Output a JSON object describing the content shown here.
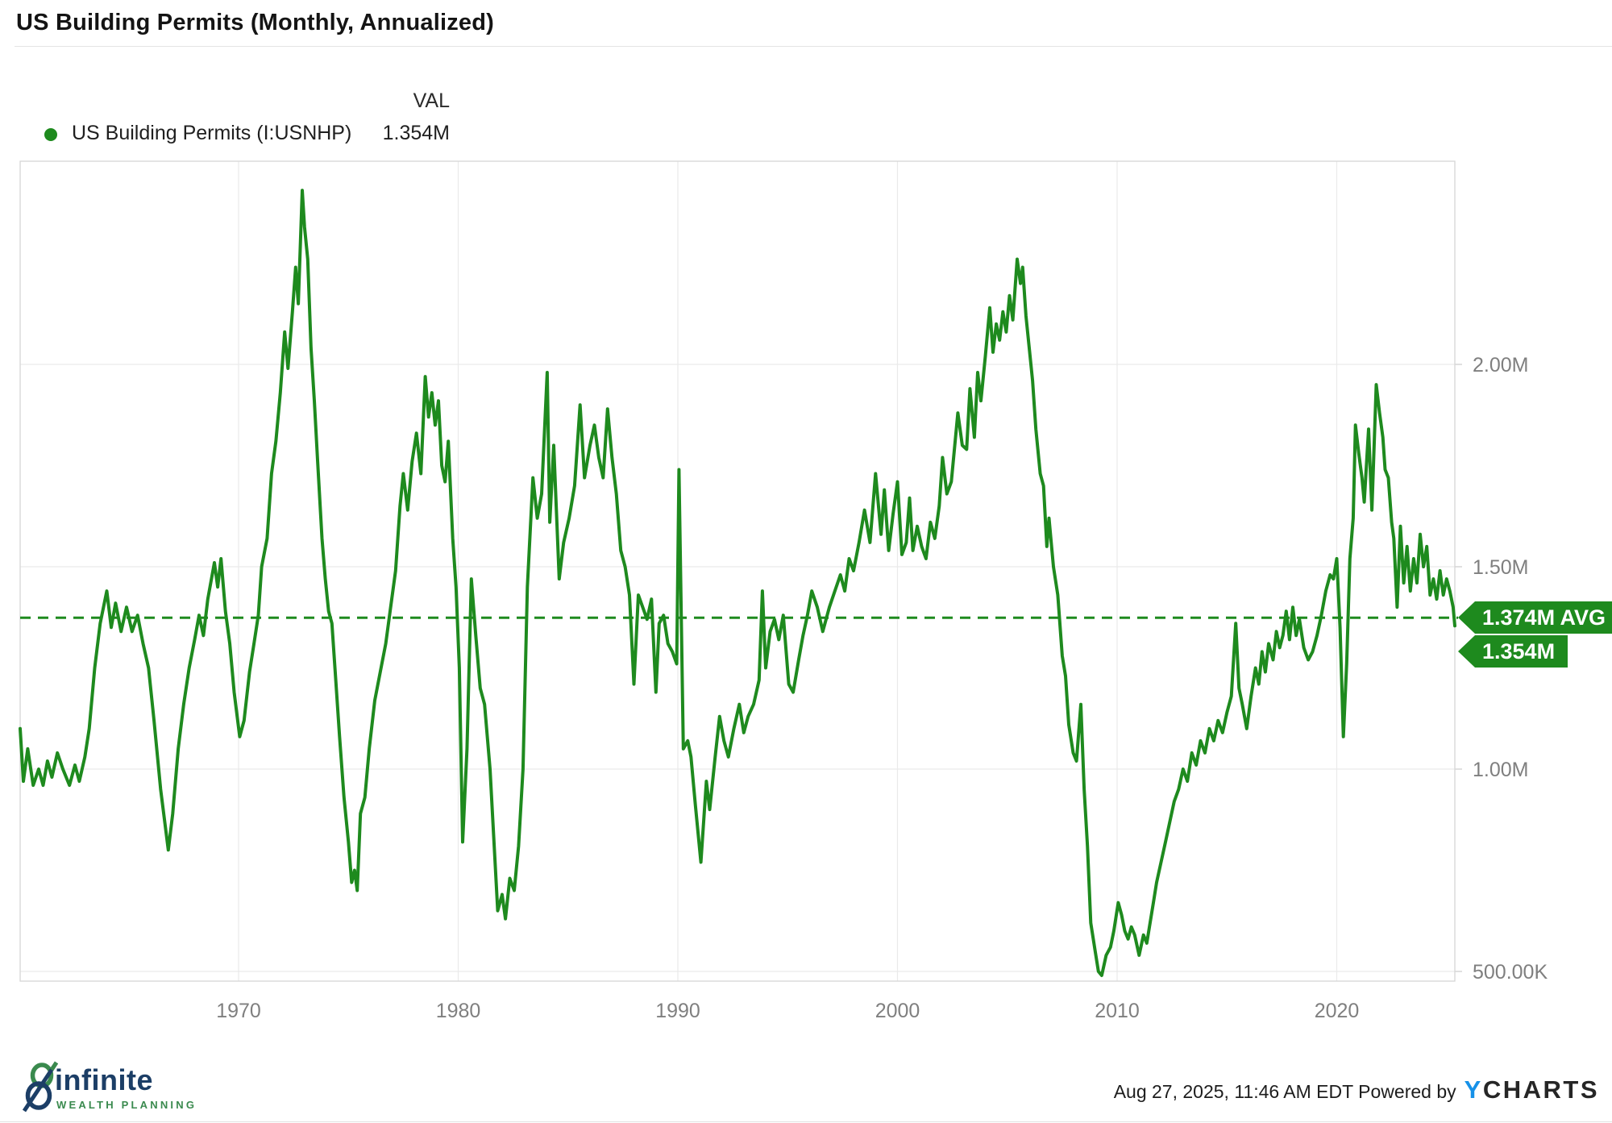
{
  "header": {
    "title": "US Building Permits (Monthly, Annualized)"
  },
  "legend": {
    "series_label": "US Building Permits (I:USNHP)",
    "val_header": "VAL",
    "val_value": "1.354M",
    "dot_color": "#1e8a1e"
  },
  "chart_data": {
    "type": "line",
    "title": "US Building Permits (Monthly, Annualized)",
    "series_name": "US Building Permits (I:USNHP)",
    "line_color": "#1e8a1e",
    "grid": true,
    "legend_position": "top-left",
    "y_axis_side": "right",
    "x_range": [
      1960,
      2025.5
    ],
    "y_range_m": [
      0.45,
      2.5
    ],
    "y_ticks": [
      {
        "value_m": 2.0,
        "label": "2.00M"
      },
      {
        "value_m": 1.5,
        "label": "1.50M"
      },
      {
        "value_m": 1.0,
        "label": "1.00M"
      },
      {
        "value_m": 0.5,
        "label": "500.00K"
      }
    ],
    "x_ticks": [
      {
        "year": 1970,
        "label": "1970"
      },
      {
        "year": 1980,
        "label": "1980"
      },
      {
        "year": 1990,
        "label": "1990"
      },
      {
        "year": 2000,
        "label": "2000"
      },
      {
        "year": 2010,
        "label": "2010"
      },
      {
        "year": 2020,
        "label": "2020"
      }
    ],
    "average": {
      "value_m": 1.374,
      "label": "1.374M AVG"
    },
    "last": {
      "value_m": 1.354,
      "label": "1.354M"
    },
    "points": [
      [
        1960.0,
        1.1
      ],
      [
        1960.2,
        0.97
      ],
      [
        1960.4,
        1.05
      ],
      [
        1960.65,
        0.96
      ],
      [
        1960.9,
        1.0
      ],
      [
        1961.1,
        0.96
      ],
      [
        1961.3,
        1.02
      ],
      [
        1961.5,
        0.98
      ],
      [
        1961.75,
        1.04
      ],
      [
        1962.0,
        1.0
      ],
      [
        1962.3,
        0.96
      ],
      [
        1962.55,
        1.01
      ],
      [
        1962.75,
        0.97
      ],
      [
        1963.0,
        1.03
      ],
      [
        1963.2,
        1.1
      ],
      [
        1963.45,
        1.25
      ],
      [
        1963.7,
        1.36
      ],
      [
        1964.0,
        1.44
      ],
      [
        1964.2,
        1.35
      ],
      [
        1964.4,
        1.41
      ],
      [
        1964.65,
        1.34
      ],
      [
        1964.9,
        1.4
      ],
      [
        1965.15,
        1.34
      ],
      [
        1965.4,
        1.38
      ],
      [
        1965.65,
        1.31
      ],
      [
        1965.9,
        1.25
      ],
      [
        1966.15,
        1.12
      ],
      [
        1966.45,
        0.95
      ],
      [
        1966.8,
        0.8
      ],
      [
        1967.0,
        0.89
      ],
      [
        1967.25,
        1.05
      ],
      [
        1967.5,
        1.16
      ],
      [
        1967.75,
        1.25
      ],
      [
        1968.0,
        1.32
      ],
      [
        1968.2,
        1.38
      ],
      [
        1968.4,
        1.33
      ],
      [
        1968.6,
        1.42
      ],
      [
        1968.9,
        1.51
      ],
      [
        1969.05,
        1.45
      ],
      [
        1969.2,
        1.52
      ],
      [
        1969.4,
        1.39
      ],
      [
        1969.6,
        1.31
      ],
      [
        1969.8,
        1.19
      ],
      [
        1970.05,
        1.08
      ],
      [
        1970.25,
        1.12
      ],
      [
        1970.5,
        1.24
      ],
      [
        1970.7,
        1.31
      ],
      [
        1970.9,
        1.38
      ],
      [
        1971.05,
        1.5
      ],
      [
        1971.3,
        1.57
      ],
      [
        1971.5,
        1.73
      ],
      [
        1971.7,
        1.81
      ],
      [
        1971.9,
        1.93
      ],
      [
        1972.1,
        2.08
      ],
      [
        1972.25,
        1.99
      ],
      [
        1972.45,
        2.13
      ],
      [
        1972.6,
        2.24
      ],
      [
        1972.72,
        2.15
      ],
      [
        1972.9,
        2.43
      ],
      [
        1973.0,
        2.34
      ],
      [
        1973.15,
        2.26
      ],
      [
        1973.3,
        2.04
      ],
      [
        1973.45,
        1.91
      ],
      [
        1973.6,
        1.76
      ],
      [
        1973.8,
        1.57
      ],
      [
        1973.95,
        1.47
      ],
      [
        1974.1,
        1.39
      ],
      [
        1974.25,
        1.36
      ],
      [
        1974.4,
        1.24
      ],
      [
        1974.6,
        1.08
      ],
      [
        1974.8,
        0.93
      ],
      [
        1975.0,
        0.82
      ],
      [
        1975.15,
        0.72
      ],
      [
        1975.28,
        0.75
      ],
      [
        1975.4,
        0.7
      ],
      [
        1975.55,
        0.89
      ],
      [
        1975.75,
        0.93
      ],
      [
        1975.95,
        1.05
      ],
      [
        1976.2,
        1.17
      ],
      [
        1976.45,
        1.24
      ],
      [
        1976.7,
        1.31
      ],
      [
        1976.9,
        1.39
      ],
      [
        1977.15,
        1.49
      ],
      [
        1977.35,
        1.65
      ],
      [
        1977.5,
        1.73
      ],
      [
        1977.7,
        1.64
      ],
      [
        1977.9,
        1.76
      ],
      [
        1978.1,
        1.83
      ],
      [
        1978.3,
        1.73
      ],
      [
        1978.5,
        1.97
      ],
      [
        1978.65,
        1.87
      ],
      [
        1978.8,
        1.93
      ],
      [
        1978.95,
        1.85
      ],
      [
        1979.1,
        1.91
      ],
      [
        1979.25,
        1.75
      ],
      [
        1979.4,
        1.71
      ],
      [
        1979.55,
        1.81
      ],
      [
        1979.75,
        1.57
      ],
      [
        1979.9,
        1.45
      ],
      [
        1980.05,
        1.25
      ],
      [
        1980.2,
        0.82
      ],
      [
        1980.4,
        1.05
      ],
      [
        1980.6,
        1.47
      ],
      [
        1980.8,
        1.33
      ],
      [
        1981.0,
        1.2
      ],
      [
        1981.2,
        1.16
      ],
      [
        1981.45,
        1.0
      ],
      [
        1981.8,
        0.65
      ],
      [
        1982.0,
        0.69
      ],
      [
        1982.15,
        0.63
      ],
      [
        1982.35,
        0.73
      ],
      [
        1982.55,
        0.7
      ],
      [
        1982.75,
        0.81
      ],
      [
        1982.95,
        1.0
      ],
      [
        1983.15,
        1.45
      ],
      [
        1983.4,
        1.72
      ],
      [
        1983.6,
        1.62
      ],
      [
        1983.8,
        1.68
      ],
      [
        1984.05,
        1.98
      ],
      [
        1984.17,
        1.61
      ],
      [
        1984.35,
        1.8
      ],
      [
        1984.6,
        1.47
      ],
      [
        1984.8,
        1.56
      ],
      [
        1985.05,
        1.62
      ],
      [
        1985.3,
        1.7
      ],
      [
        1985.55,
        1.9
      ],
      [
        1985.75,
        1.72
      ],
      [
        1986.0,
        1.8
      ],
      [
        1986.2,
        1.85
      ],
      [
        1986.4,
        1.77
      ],
      [
        1986.6,
        1.72
      ],
      [
        1986.8,
        1.89
      ],
      [
        1987.0,
        1.77
      ],
      [
        1987.2,
        1.68
      ],
      [
        1987.4,
        1.54
      ],
      [
        1987.6,
        1.5
      ],
      [
        1987.8,
        1.43
      ],
      [
        1988.0,
        1.21
      ],
      [
        1988.2,
        1.43
      ],
      [
        1988.4,
        1.4
      ],
      [
        1988.6,
        1.37
      ],
      [
        1988.8,
        1.42
      ],
      [
        1989.0,
        1.19
      ],
      [
        1989.15,
        1.36
      ],
      [
        1989.35,
        1.38
      ],
      [
        1989.55,
        1.31
      ],
      [
        1989.75,
        1.29
      ],
      [
        1989.95,
        1.26
      ],
      [
        1990.05,
        1.74
      ],
      [
        1990.25,
        1.05
      ],
      [
        1990.45,
        1.07
      ],
      [
        1990.6,
        1.03
      ],
      [
        1990.8,
        0.91
      ],
      [
        1991.05,
        0.77
      ],
      [
        1991.3,
        0.97
      ],
      [
        1991.45,
        0.9
      ],
      [
        1991.7,
        1.03
      ],
      [
        1991.9,
        1.13
      ],
      [
        1992.1,
        1.07
      ],
      [
        1992.3,
        1.03
      ],
      [
        1992.55,
        1.1
      ],
      [
        1992.8,
        1.16
      ],
      [
        1993.0,
        1.09
      ],
      [
        1993.2,
        1.13
      ],
      [
        1993.45,
        1.16
      ],
      [
        1993.7,
        1.22
      ],
      [
        1993.85,
        1.44
      ],
      [
        1994.0,
        1.25
      ],
      [
        1994.2,
        1.34
      ],
      [
        1994.4,
        1.37
      ],
      [
        1994.6,
        1.32
      ],
      [
        1994.8,
        1.38
      ],
      [
        1995.05,
        1.21
      ],
      [
        1995.25,
        1.19
      ],
      [
        1995.5,
        1.27
      ],
      [
        1995.7,
        1.33
      ],
      [
        1995.9,
        1.38
      ],
      [
        1996.1,
        1.44
      ],
      [
        1996.35,
        1.4
      ],
      [
        1996.6,
        1.34
      ],
      [
        1996.9,
        1.4
      ],
      [
        1997.15,
        1.44
      ],
      [
        1997.4,
        1.48
      ],
      [
        1997.6,
        1.44
      ],
      [
        1997.8,
        1.52
      ],
      [
        1998.0,
        1.49
      ],
      [
        1998.25,
        1.56
      ],
      [
        1998.5,
        1.64
      ],
      [
        1998.75,
        1.56
      ],
      [
        1999.0,
        1.73
      ],
      [
        1999.25,
        1.58
      ],
      [
        1999.4,
        1.69
      ],
      [
        1999.6,
        1.54
      ],
      [
        1999.8,
        1.63
      ],
      [
        2000.0,
        1.71
      ],
      [
        2000.2,
        1.53
      ],
      [
        2000.4,
        1.56
      ],
      [
        2000.55,
        1.67
      ],
      [
        2000.7,
        1.54
      ],
      [
        2000.9,
        1.6
      ],
      [
        2001.1,
        1.55
      ],
      [
        2001.3,
        1.52
      ],
      [
        2001.5,
        1.61
      ],
      [
        2001.7,
        1.57
      ],
      [
        2001.9,
        1.65
      ],
      [
        2002.05,
        1.77
      ],
      [
        2002.25,
        1.68
      ],
      [
        2002.45,
        1.71
      ],
      [
        2002.75,
        1.88
      ],
      [
        2002.95,
        1.8
      ],
      [
        2003.15,
        1.79
      ],
      [
        2003.3,
        1.94
      ],
      [
        2003.5,
        1.82
      ],
      [
        2003.65,
        1.98
      ],
      [
        2003.8,
        1.91
      ],
      [
        2004.0,
        2.02
      ],
      [
        2004.2,
        2.14
      ],
      [
        2004.35,
        2.03
      ],
      [
        2004.5,
        2.1
      ],
      [
        2004.65,
        2.06
      ],
      [
        2004.8,
        2.13
      ],
      [
        2004.95,
        2.08
      ],
      [
        2005.1,
        2.17
      ],
      [
        2005.25,
        2.11
      ],
      [
        2005.45,
        2.26
      ],
      [
        2005.6,
        2.2
      ],
      [
        2005.7,
        2.24
      ],
      [
        2005.85,
        2.12
      ],
      [
        2006.0,
        2.04
      ],
      [
        2006.15,
        1.96
      ],
      [
        2006.3,
        1.84
      ],
      [
        2006.5,
        1.73
      ],
      [
        2006.65,
        1.7
      ],
      [
        2006.8,
        1.55
      ],
      [
        2006.9,
        1.62
      ],
      [
        2007.1,
        1.5
      ],
      [
        2007.3,
        1.43
      ],
      [
        2007.5,
        1.28
      ],
      [
        2007.65,
        1.23
      ],
      [
        2007.8,
        1.11
      ],
      [
        2008.0,
        1.04
      ],
      [
        2008.15,
        1.02
      ],
      [
        2008.35,
        1.16
      ],
      [
        2008.5,
        0.95
      ],
      [
        2008.65,
        0.81
      ],
      [
        2008.8,
        0.62
      ],
      [
        2009.0,
        0.55
      ],
      [
        2009.15,
        0.5
      ],
      [
        2009.3,
        0.49
      ],
      [
        2009.5,
        0.54
      ],
      [
        2009.7,
        0.56
      ],
      [
        2009.85,
        0.6
      ],
      [
        2010.05,
        0.67
      ],
      [
        2010.2,
        0.64
      ],
      [
        2010.35,
        0.6
      ],
      [
        2010.5,
        0.58
      ],
      [
        2010.65,
        0.61
      ],
      [
        2010.8,
        0.59
      ],
      [
        2011.0,
        0.54
      ],
      [
        2011.2,
        0.59
      ],
      [
        2011.35,
        0.57
      ],
      [
        2011.5,
        0.62
      ],
      [
        2011.65,
        0.67
      ],
      [
        2011.8,
        0.72
      ],
      [
        2012.0,
        0.77
      ],
      [
        2012.2,
        0.82
      ],
      [
        2012.4,
        0.87
      ],
      [
        2012.6,
        0.92
      ],
      [
        2012.8,
        0.95
      ],
      [
        2013.0,
        1.0
      ],
      [
        2013.2,
        0.97
      ],
      [
        2013.4,
        1.04
      ],
      [
        2013.6,
        1.01
      ],
      [
        2013.8,
        1.07
      ],
      [
        2014.0,
        1.04
      ],
      [
        2014.2,
        1.1
      ],
      [
        2014.4,
        1.07
      ],
      [
        2014.6,
        1.12
      ],
      [
        2014.8,
        1.09
      ],
      [
        2015.0,
        1.14
      ],
      [
        2015.2,
        1.18
      ],
      [
        2015.4,
        1.36
      ],
      [
        2015.55,
        1.2
      ],
      [
        2015.7,
        1.16
      ],
      [
        2015.9,
        1.1
      ],
      [
        2016.1,
        1.18
      ],
      [
        2016.3,
        1.25
      ],
      [
        2016.45,
        1.21
      ],
      [
        2016.6,
        1.29
      ],
      [
        2016.75,
        1.24
      ],
      [
        2016.9,
        1.31
      ],
      [
        2017.1,
        1.27
      ],
      [
        2017.25,
        1.34
      ],
      [
        2017.4,
        1.3
      ],
      [
        2017.55,
        1.33
      ],
      [
        2017.7,
        1.39
      ],
      [
        2017.85,
        1.32
      ],
      [
        2018.0,
        1.4
      ],
      [
        2018.15,
        1.33
      ],
      [
        2018.3,
        1.37
      ],
      [
        2018.5,
        1.3
      ],
      [
        2018.7,
        1.27
      ],
      [
        2018.9,
        1.29
      ],
      [
        2019.1,
        1.33
      ],
      [
        2019.3,
        1.38
      ],
      [
        2019.5,
        1.44
      ],
      [
        2019.7,
        1.48
      ],
      [
        2019.85,
        1.47
      ],
      [
        2020.0,
        1.52
      ],
      [
        2020.15,
        1.35
      ],
      [
        2020.3,
        1.08
      ],
      [
        2020.45,
        1.26
      ],
      [
        2020.6,
        1.52
      ],
      [
        2020.75,
        1.62
      ],
      [
        2020.85,
        1.85
      ],
      [
        2021.0,
        1.78
      ],
      [
        2021.15,
        1.72
      ],
      [
        2021.25,
        1.66
      ],
      [
        2021.45,
        1.84
      ],
      [
        2021.6,
        1.64
      ],
      [
        2021.8,
        1.95
      ],
      [
        2021.95,
        1.88
      ],
      [
        2022.1,
        1.82
      ],
      [
        2022.2,
        1.74
      ],
      [
        2022.35,
        1.72
      ],
      [
        2022.5,
        1.61
      ],
      [
        2022.6,
        1.57
      ],
      [
        2022.75,
        1.4
      ],
      [
        2022.9,
        1.6
      ],
      [
        2023.05,
        1.46
      ],
      [
        2023.2,
        1.55
      ],
      [
        2023.35,
        1.44
      ],
      [
        2023.5,
        1.52
      ],
      [
        2023.65,
        1.46
      ],
      [
        2023.8,
        1.58
      ],
      [
        2023.95,
        1.5
      ],
      [
        2024.1,
        1.55
      ],
      [
        2024.25,
        1.43
      ],
      [
        2024.4,
        1.47
      ],
      [
        2024.55,
        1.42
      ],
      [
        2024.7,
        1.49
      ],
      [
        2024.85,
        1.43
      ],
      [
        2025.0,
        1.47
      ],
      [
        2025.15,
        1.44
      ],
      [
        2025.3,
        1.4
      ],
      [
        2025.45,
        1.354
      ]
    ]
  },
  "footer": {
    "logo": {
      "name": "infinite",
      "tagline": "WEALTH PLANNING",
      "name_color": "#1c3e66",
      "tagline_color": "#3a8a4e"
    },
    "attribution": {
      "timestamp": "Aug 27, 2025, 11:46 AM EDT",
      "powered_by": "Powered by",
      "brand_y": "Y",
      "brand_rest": "CHARTS",
      "brand_y_color": "#1691e8"
    }
  },
  "colors": {
    "series_green": "#1e8a1e",
    "badge_green": "#1e8a1e",
    "gridline": "#eaeaea",
    "plot_border": "#d6d6d6",
    "tick_text": "#7f7f7f",
    "title_text": "#141414"
  }
}
